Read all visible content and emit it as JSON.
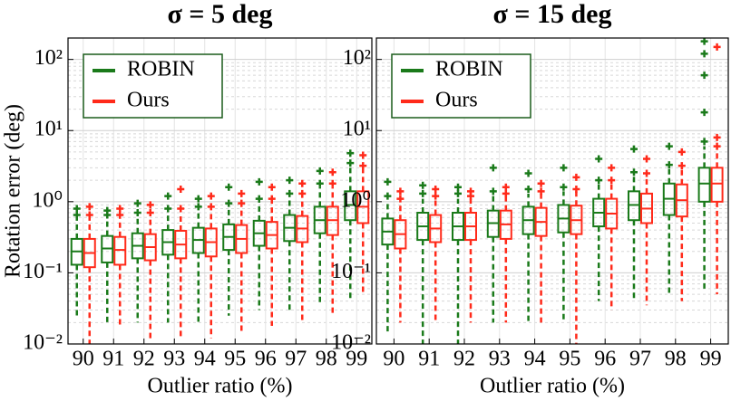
{
  "chart_data": [
    {
      "type": "box",
      "title": "σ = 5 deg",
      "xlabel": "Outlier ratio (%)",
      "ylabel": "Rotation error (deg)",
      "log_y": true,
      "grid": true,
      "legend": "upper left",
      "categories": [
        "90",
        "91",
        "92",
        "93",
        "94",
        "95",
        "96",
        "97",
        "98",
        "99"
      ],
      "ylim": [
        0.01,
        200
      ],
      "yticks": [
        {
          "value": 0.01,
          "label": "10⁻²"
        },
        {
          "value": 0.1,
          "label": "10⁻¹"
        },
        {
          "value": 1,
          "label": "10⁰"
        },
        {
          "value": 10,
          "label": "10¹"
        },
        {
          "value": 100,
          "label": "10²"
        }
      ],
      "yminorticks": [
        0.02,
        0.03,
        0.04,
        0.05,
        0.06,
        0.07,
        0.08,
        0.09,
        0.2,
        0.3,
        0.4,
        0.5,
        0.6,
        0.7,
        0.8,
        0.9,
        2,
        3,
        4,
        5,
        6,
        7,
        8,
        9,
        20,
        30,
        40,
        50,
        60,
        70,
        80,
        90
      ],
      "series": [
        {
          "name": "ROBIN",
          "color": "#1a7a1a",
          "whislo": [
            0.025,
            0.02,
            0.02,
            0.02,
            0.02,
            0.025,
            0.03,
            0.03,
            0.035,
            0.04
          ],
          "q1": [
            0.13,
            0.14,
            0.16,
            0.18,
            0.19,
            0.21,
            0.24,
            0.28,
            0.36,
            0.55
          ],
          "med": [
            0.2,
            0.22,
            0.24,
            0.27,
            0.29,
            0.32,
            0.36,
            0.43,
            0.55,
            0.9
          ],
          "q3": [
            0.3,
            0.33,
            0.36,
            0.4,
            0.43,
            0.48,
            0.54,
            0.65,
            0.85,
            1.4
          ],
          "whishi": [
            0.6,
            0.6,
            0.65,
            0.7,
            0.75,
            0.85,
            1.0,
            1.2,
            1.6,
            3.0
          ],
          "fliers": [
            [
              0.65,
              0.8
            ],
            [
              0.65,
              0.75
            ],
            [
              0.7,
              0.95
            ],
            [
              0.8,
              1.2
            ],
            [
              0.85,
              1.1
            ],
            [
              0.95,
              1.6
            ],
            [
              1.1,
              1.9
            ],
            [
              1.3,
              2.0
            ],
            [
              1.8,
              2.7
            ],
            [
              3.5,
              4.8
            ]
          ]
        },
        {
          "name": "Ours",
          "color": "#ff2a1a",
          "whislo": [
            0.008,
            0.018,
            0.012,
            0.012,
            0.012,
            0.015,
            0.018,
            0.02,
            0.025,
            0.05
          ],
          "q1": [
            0.12,
            0.13,
            0.15,
            0.16,
            0.17,
            0.19,
            0.22,
            0.27,
            0.34,
            0.5
          ],
          "med": [
            0.19,
            0.21,
            0.23,
            0.25,
            0.27,
            0.3,
            0.34,
            0.42,
            0.55,
            0.85
          ],
          "q3": [
            0.3,
            0.32,
            0.35,
            0.39,
            0.42,
            0.47,
            0.52,
            0.63,
            0.85,
            1.4
          ],
          "whishi": [
            0.6,
            0.6,
            0.65,
            0.7,
            0.75,
            0.85,
            1.0,
            1.2,
            1.6,
            3.0
          ],
          "fliers": [
            [
              0.65,
              0.85
            ],
            [
              0.65,
              0.8
            ],
            [
              0.7,
              0.9
            ],
            [
              0.8,
              1.5
            ],
            [
              0.85,
              1.2
            ],
            [
              0.95,
              1.3
            ],
            [
              1.1,
              1.6
            ],
            [
              1.3,
              1.8
            ],
            [
              1.8,
              2.6
            ],
            [
              3.2,
              4.5
            ]
          ]
        }
      ]
    },
    {
      "type": "box",
      "title": "σ = 15 deg",
      "xlabel": "Outlier ratio (%)",
      "log_y": true,
      "grid": true,
      "legend": "upper left",
      "categories": [
        "90",
        "91",
        "92",
        "93",
        "94",
        "95",
        "96",
        "97",
        "98",
        "99"
      ],
      "ylim": [
        0.01,
        200
      ],
      "yticks": [
        {
          "value": 0.01,
          "label": "10⁻²"
        },
        {
          "value": 0.1,
          "label": "10⁻¹"
        },
        {
          "value": 1,
          "label": "10⁰"
        },
        {
          "value": 10,
          "label": "10¹"
        },
        {
          "value": 100,
          "label": "10²"
        }
      ],
      "yminorticks": [
        0.02,
        0.03,
        0.04,
        0.05,
        0.06,
        0.07,
        0.08,
        0.09,
        0.2,
        0.3,
        0.4,
        0.5,
        0.6,
        0.7,
        0.8,
        0.9,
        2,
        3,
        4,
        5,
        6,
        7,
        8,
        9,
        20,
        30,
        40,
        50,
        60,
        70,
        80,
        90
      ],
      "series": [
        {
          "name": "ROBIN",
          "color": "#1a7a1a",
          "whislo": [
            0.015,
            0.008,
            0.008,
            0.02,
            0.02,
            0.02,
            0.04,
            0.04,
            0.05,
            0.06
          ],
          "q1": [
            0.25,
            0.29,
            0.29,
            0.32,
            0.35,
            0.37,
            0.45,
            0.55,
            0.65,
            1.0
          ],
          "med": [
            0.38,
            0.45,
            0.45,
            0.5,
            0.55,
            0.58,
            0.7,
            0.9,
            1.1,
            1.8
          ],
          "q3": [
            0.58,
            0.7,
            0.7,
            0.75,
            0.85,
            0.9,
            1.1,
            1.4,
            1.8,
            3.0
          ],
          "whishi": [
            1.0,
            1.1,
            1.1,
            1.2,
            1.3,
            1.4,
            1.8,
            2.3,
            3.0,
            6.0
          ],
          "fliers": [
            [
              1.2,
              1.9
            ],
            [
              1.3,
              1.7
            ],
            [
              1.3,
              1.6
            ],
            [
              1.4,
              3.0
            ],
            [
              1.5,
              2.5
            ],
            [
              1.6,
              3.0
            ],
            [
              2.0,
              4.0
            ],
            [
              2.6,
              5.5
            ],
            [
              3.3,
              6.0
            ],
            [
              7,
              18,
              60,
              120,
              180
            ]
          ]
        },
        {
          "name": "Ours",
          "color": "#ff2a1a",
          "whislo": [
            0.02,
            0.02,
            0.02,
            0.02,
            0.02,
            0.008,
            0.03,
            0.035,
            0.04,
            0.05
          ],
          "q1": [
            0.22,
            0.27,
            0.29,
            0.3,
            0.33,
            0.35,
            0.42,
            0.5,
            0.62,
            1.0
          ],
          "med": [
            0.35,
            0.42,
            0.45,
            0.48,
            0.52,
            0.55,
            0.68,
            0.8,
            1.05,
            1.8
          ],
          "q3": [
            0.55,
            0.65,
            0.7,
            0.75,
            0.82,
            0.88,
            1.1,
            1.3,
            1.75,
            3.0
          ],
          "whishi": [
            1.0,
            1.1,
            1.1,
            1.2,
            1.3,
            1.4,
            1.8,
            2.3,
            3.0,
            5.5
          ],
          "fliers": [
            [
              1.1,
              1.4
            ],
            [
              1.2,
              1.5
            ],
            [
              1.2,
              1.4
            ],
            [
              1.3,
              1.6
            ],
            [
              1.4,
              1.8
            ],
            [
              1.5,
              2.2
            ],
            [
              2.0,
              3.0
            ],
            [
              2.5,
              4.0
            ],
            [
              3.2,
              5.0
            ],
            [
              6,
              8,
              150
            ]
          ]
        }
      ]
    }
  ]
}
